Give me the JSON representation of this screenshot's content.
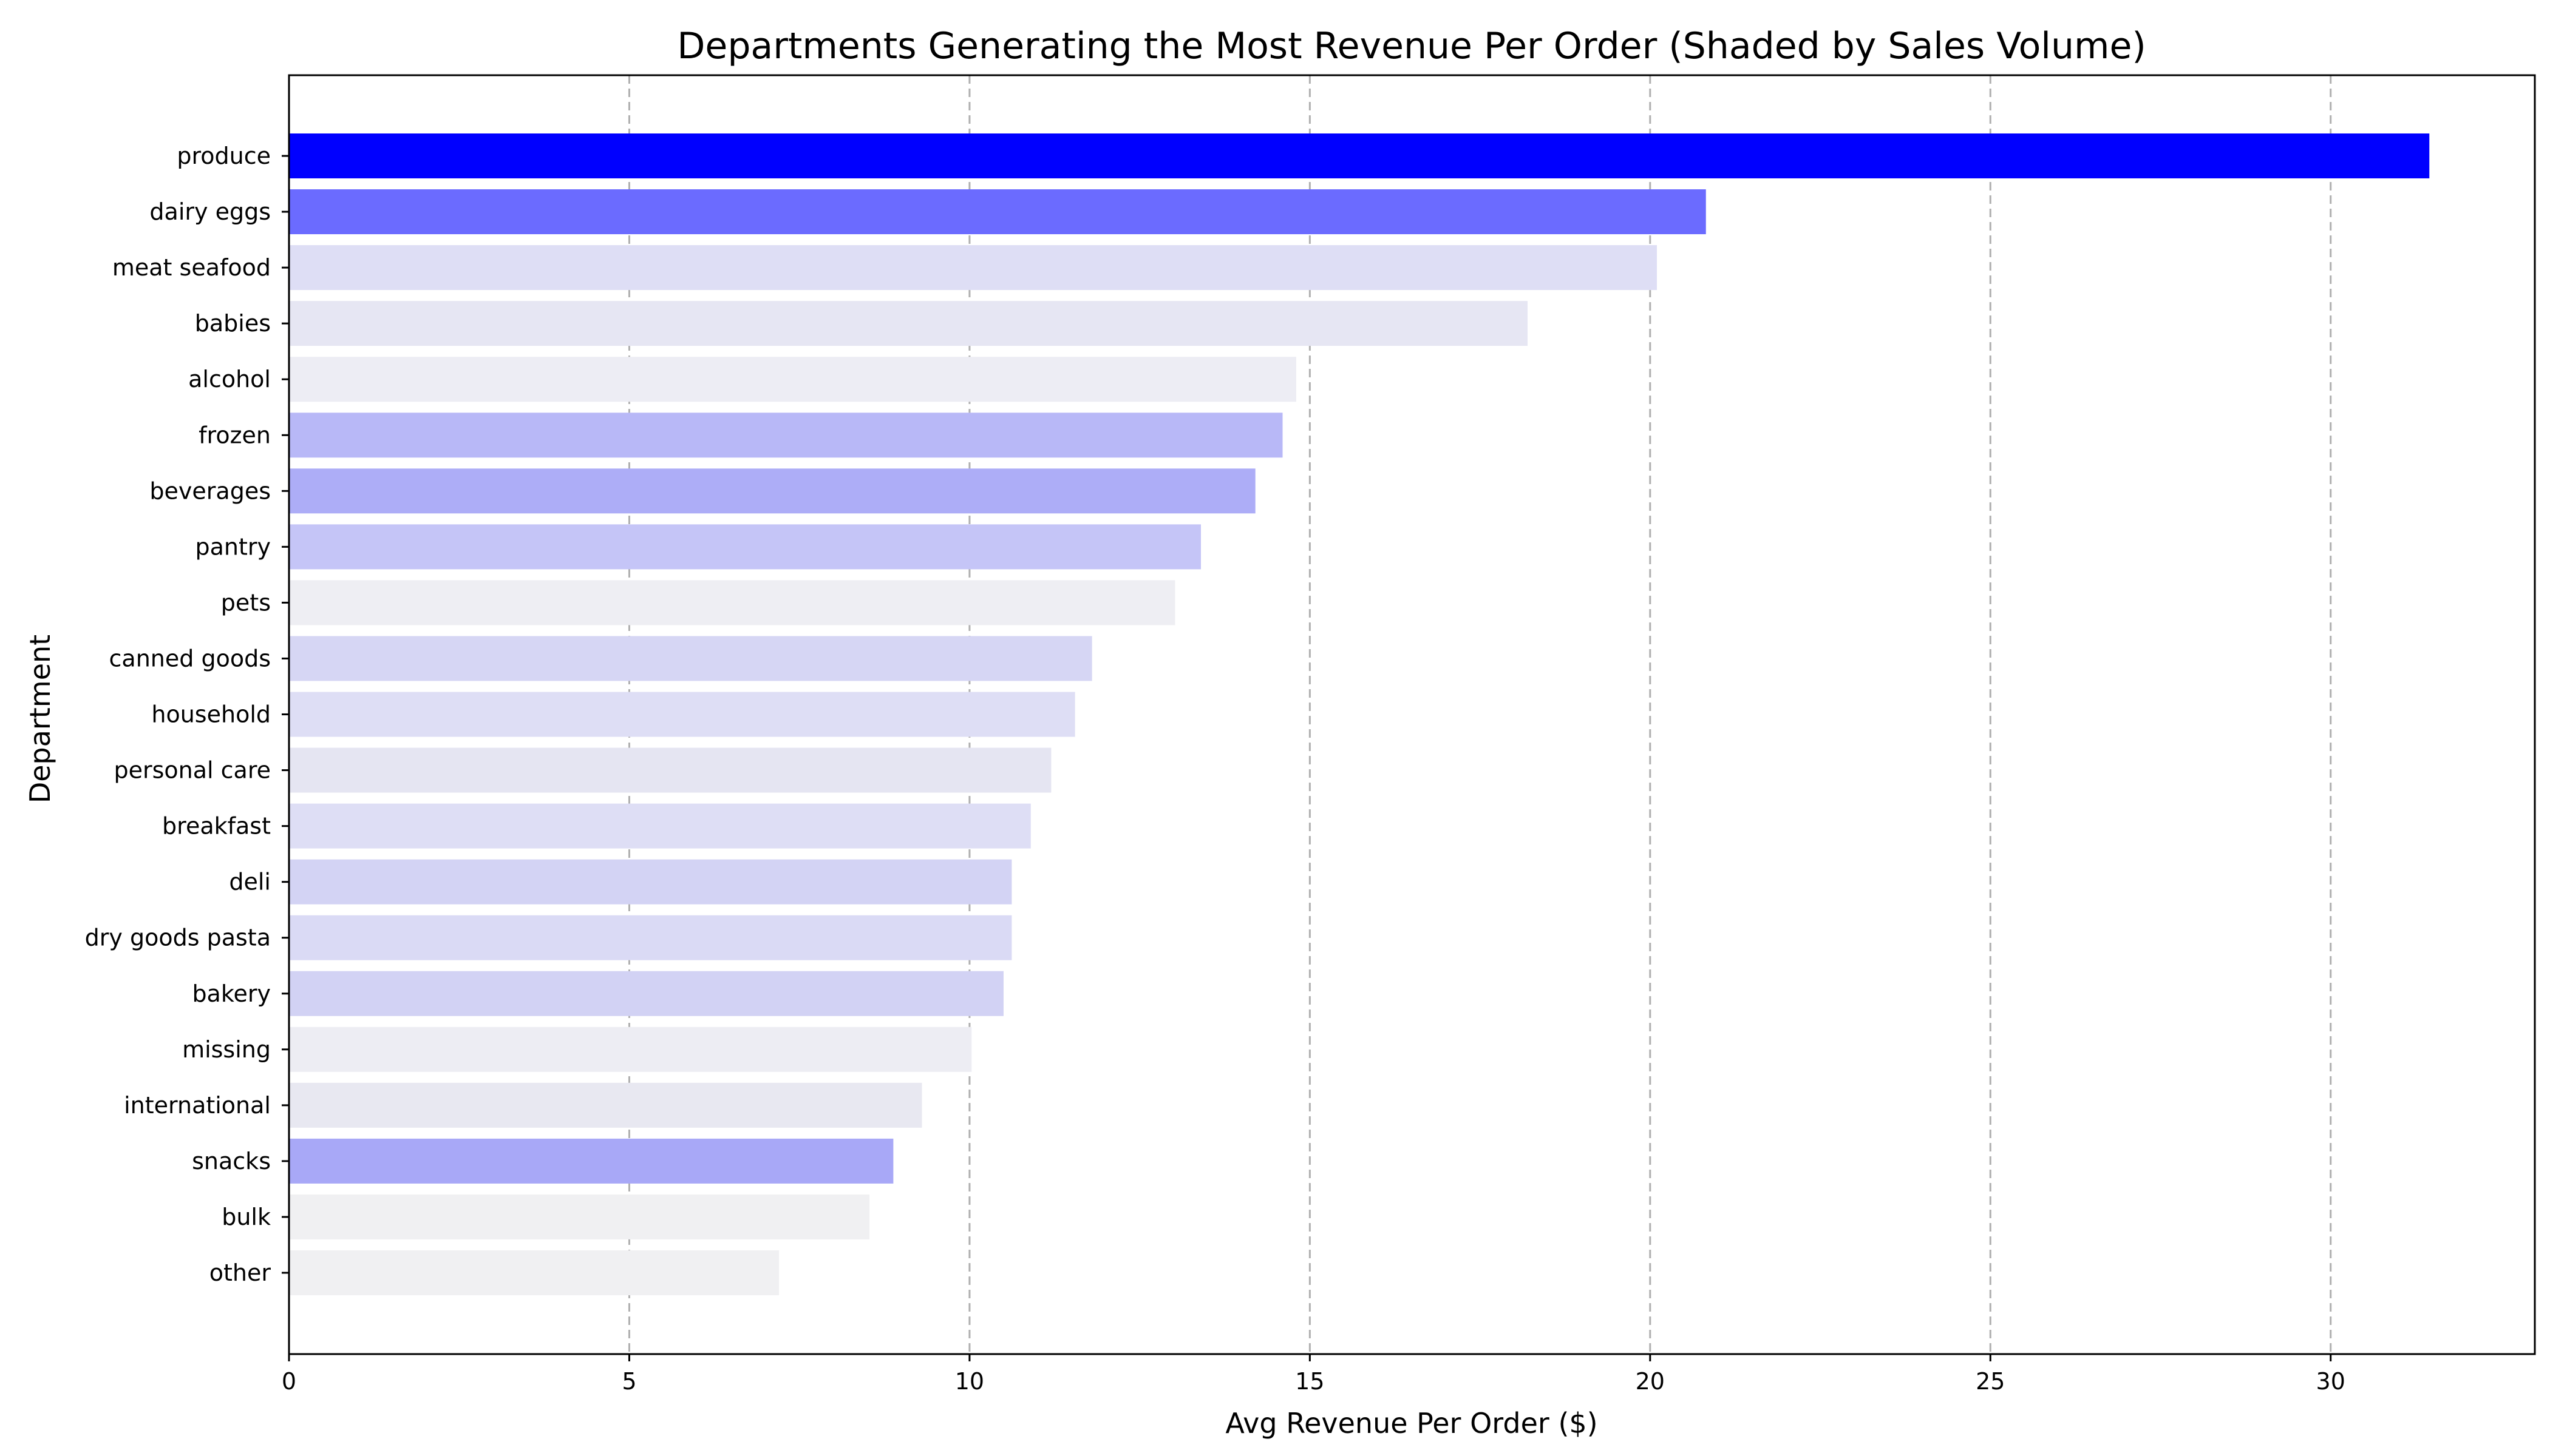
{
  "chart_data": {
    "type": "bar",
    "orientation": "horizontal",
    "title": "Departments Generating the Most Revenue Per Order (Shaded by Sales Volume)",
    "xlabel": "Avg Revenue Per Order ($)",
    "ylabel": "Department",
    "xlim": [
      0,
      33
    ],
    "xticks": [
      0,
      5,
      10,
      15,
      20,
      25,
      30
    ],
    "grid": "x-axis dashed",
    "categories": [
      "produce",
      "dairy eggs",
      "meat seafood",
      "babies",
      "alcohol",
      "frozen",
      "beverages",
      "pantry",
      "pets",
      "canned goods",
      "household",
      "personal care",
      "breakfast",
      "deli",
      "dry goods pasta",
      "bakery",
      "missing",
      "international",
      "snacks",
      "bulk",
      "other"
    ],
    "values": [
      31.45,
      20.82,
      20.1,
      18.2,
      14.8,
      14.6,
      14.2,
      13.4,
      13.02,
      11.8,
      11.55,
      11.2,
      10.9,
      10.62,
      10.62,
      10.5,
      10.03,
      9.3,
      8.88,
      8.53,
      7.2
    ],
    "colors": [
      "#0000ff",
      "#6b6bff",
      "#dedef5",
      "#e6e6f3",
      "#ededf4",
      "#b8b8f7",
      "#adadf7",
      "#c5c5f7",
      "#eeeef3",
      "#d6d6f4",
      "#dedef5",
      "#e5e5f2",
      "#dedef5",
      "#d3d3f4",
      "#dadaf5",
      "#d2d2f4",
      "#ededf3",
      "#e8e8f1",
      "#a8a8f7",
      "#f0f0f2",
      "#f0f0f2"
    ]
  }
}
